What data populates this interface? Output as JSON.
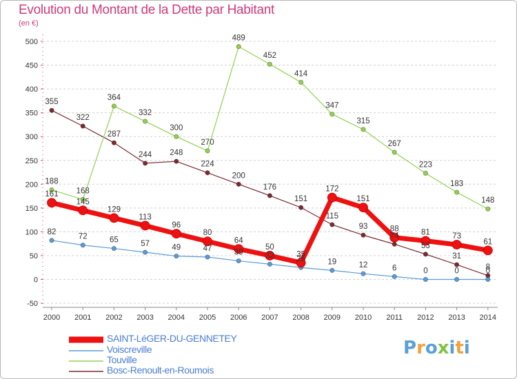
{
  "header": {
    "title": "Evolution du Montant de la Dette par Habitant",
    "unit": "(en €)"
  },
  "logo": {
    "text": "Proxiti",
    "colors": [
      "#5aa0d8",
      "#f2a23a",
      "#80c242"
    ]
  },
  "chart_data": {
    "type": "line",
    "title": "Evolution du Montant de la Dette par Habitant",
    "subtitle": "(en €)",
    "xlabel": "",
    "ylabel": "",
    "x": [
      "2000",
      "2001",
      "2002",
      "2003",
      "2004",
      "2005",
      "2006",
      "2007",
      "2008",
      "2009",
      "2010",
      "2011",
      "2012",
      "2013",
      "2014"
    ],
    "yticks": [
      "500",
      "450",
      "400",
      "350",
      "300",
      "250",
      "200",
      "150",
      "100",
      "50",
      "0",
      "-50"
    ],
    "ylim": [
      -50,
      500
    ],
    "grid": "horizontal dashed",
    "legend_position": "bottom-left",
    "series": [
      {
        "name": "SAINT-LéGER-DU-GENNETEY",
        "color": "#ee1111",
        "values": [
          161,
          145,
          129,
          113,
          96,
          80,
          64,
          50,
          35,
          172,
          151,
          88,
          81,
          73,
          61
        ],
        "labels": [
          "161",
          "145",
          "129",
          "113",
          "96",
          "80",
          "64",
          "50",
          "35",
          "172",
          "151",
          "88",
          "81",
          "73",
          "61"
        ]
      },
      {
        "name": "Voiscreville",
        "color": "#5b9bd5",
        "values": [
          82,
          72,
          65,
          57,
          49,
          47,
          39,
          32,
          25,
          19,
          12,
          6,
          0,
          0,
          0
        ],
        "labels": [
          "82",
          "72",
          "65",
          "57",
          "49",
          "47",
          "39",
          "32",
          "25",
          "19",
          "12",
          "6",
          "0",
          "0",
          "0"
        ]
      },
      {
        "name": "Touville",
        "color": "#92d050",
        "values": [
          188,
          168,
          364,
          332,
          300,
          270,
          489,
          452,
          414,
          347,
          315,
          267,
          223,
          183,
          148
        ],
        "labels": [
          "188",
          "168",
          "364",
          "332",
          "300",
          "270",
          "489",
          "452",
          "414",
          "347",
          "315",
          "267",
          "223",
          "183",
          "148"
        ]
      },
      {
        "name": "Bosc-Renoult-en-Roumois",
        "color": "#7b2a30",
        "values": [
          355,
          322,
          287,
          244,
          248,
          224,
          200,
          176,
          151,
          115,
          93,
          74,
          53,
          31,
          8
        ],
        "labels": [
          "355",
          "322",
          "287",
          "244",
          "248",
          "224",
          "200",
          "176",
          "151",
          "115",
          "93",
          "74",
          "53",
          "31",
          "8"
        ]
      }
    ]
  }
}
